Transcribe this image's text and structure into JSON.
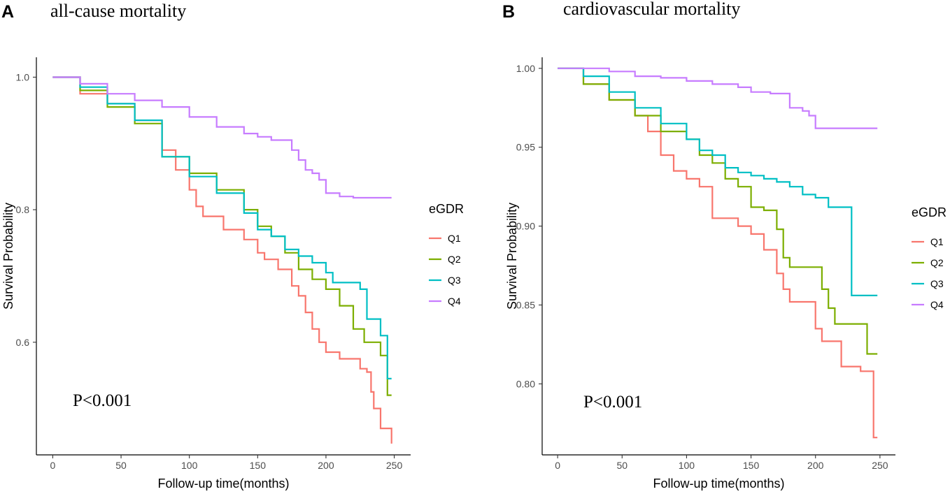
{
  "chart_data": [
    {
      "panel": "A",
      "type": "line",
      "title": "all-cause mortality",
      "xlabel": "Follow-up time(months)",
      "ylabel": "Survival Probability",
      "xlim": [
        -12,
        262
      ],
      "ylim": [
        0.43,
        1.03
      ],
      "xticks": [
        0,
        50,
        100,
        150,
        200,
        250
      ],
      "xtick_labels": [
        "0",
        "50",
        "100",
        "150",
        "200",
        "250"
      ],
      "yticks": [
        0.6,
        0.8,
        1.0
      ],
      "ytick_labels": [
        "0.6",
        "0.8",
        "1.0"
      ],
      "annotation": "P<0.001",
      "legend_title": "eGDR",
      "series": [
        {
          "name": "Q1",
          "color": "#F8766D",
          "x": [
            0,
            20,
            40,
            60,
            80,
            90,
            100,
            105,
            110,
            125,
            140,
            150,
            155,
            165,
            175,
            180,
            185,
            190,
            195,
            200,
            210,
            220,
            225,
            230,
            233,
            235,
            240,
            244,
            248
          ],
          "y": [
            1.0,
            0.975,
            0.96,
            0.935,
            0.89,
            0.86,
            0.83,
            0.805,
            0.79,
            0.77,
            0.755,
            0.735,
            0.725,
            0.71,
            0.685,
            0.67,
            0.645,
            0.62,
            0.6,
            0.585,
            0.575,
            0.575,
            0.56,
            0.555,
            0.525,
            0.5,
            0.47,
            0.47,
            0.447
          ]
        },
        {
          "name": "Q2",
          "color": "#7CAE00",
          "x": [
            0,
            20,
            40,
            60,
            80,
            100,
            120,
            140,
            150,
            160,
            170,
            180,
            190,
            200,
            210,
            220,
            228,
            240,
            245,
            248
          ],
          "y": [
            1.0,
            0.98,
            0.955,
            0.93,
            0.88,
            0.855,
            0.83,
            0.8,
            0.775,
            0.76,
            0.735,
            0.71,
            0.695,
            0.68,
            0.655,
            0.62,
            0.6,
            0.58,
            0.52,
            0.52
          ]
        },
        {
          "name": "Q3",
          "color": "#00BFC4",
          "x": [
            0,
            20,
            40,
            60,
            80,
            100,
            120,
            140,
            150,
            160,
            170,
            180,
            190,
            200,
            205,
            215,
            225,
            230,
            235,
            240,
            245,
            248
          ],
          "y": [
            1.0,
            0.985,
            0.96,
            0.935,
            0.88,
            0.85,
            0.825,
            0.795,
            0.77,
            0.76,
            0.74,
            0.73,
            0.72,
            0.705,
            0.69,
            0.69,
            0.68,
            0.635,
            0.635,
            0.61,
            0.545,
            0.545
          ]
        },
        {
          "name": "Q4",
          "color": "#C77CFF",
          "x": [
            0,
            20,
            40,
            60,
            80,
            100,
            120,
            140,
            150,
            160,
            170,
            175,
            180,
            185,
            190,
            195,
            200,
            210,
            220,
            230,
            248
          ],
          "y": [
            1.0,
            0.99,
            0.975,
            0.965,
            0.955,
            0.94,
            0.925,
            0.915,
            0.91,
            0.905,
            0.905,
            0.89,
            0.875,
            0.86,
            0.855,
            0.845,
            0.825,
            0.82,
            0.818,
            0.818,
            0.818
          ]
        }
      ]
    },
    {
      "panel": "B",
      "type": "line",
      "title": "cardiovascular mortality",
      "xlabel": "Follow-up time(months)",
      "ylabel": "Survival Probability",
      "xlim": [
        -12,
        262
      ],
      "ylim": [
        0.755,
        1.007
      ],
      "xticks": [
        0,
        50,
        100,
        150,
        200,
        250
      ],
      "xtick_labels": [
        "0",
        "50",
        "100",
        "150",
        "200",
        "250"
      ],
      "yticks": [
        0.8,
        0.85,
        0.9,
        0.95,
        1.0
      ],
      "ytick_labels": [
        "0.80",
        "0.85",
        "0.90",
        "0.95",
        "1.00"
      ],
      "annotation": "P<0.001",
      "legend_title": "eGDR",
      "series": [
        {
          "name": "Q1",
          "color": "#F8766D",
          "x": [
            0,
            20,
            40,
            60,
            70,
            80,
            90,
            100,
            110,
            120,
            130,
            140,
            150,
            160,
            170,
            175,
            180,
            185,
            195,
            200,
            205,
            215,
            220,
            225,
            235,
            240,
            245,
            248
          ],
          "y": [
            1.0,
            0.99,
            0.98,
            0.97,
            0.96,
            0.945,
            0.935,
            0.93,
            0.925,
            0.905,
            0.905,
            0.9,
            0.895,
            0.885,
            0.87,
            0.86,
            0.852,
            0.852,
            0.852,
            0.835,
            0.827,
            0.827,
            0.811,
            0.811,
            0.808,
            0.808,
            0.766,
            0.766
          ]
        },
        {
          "name": "Q2",
          "color": "#7CAE00",
          "x": [
            0,
            20,
            40,
            60,
            80,
            100,
            110,
            120,
            130,
            140,
            150,
            160,
            170,
            175,
            180,
            200,
            205,
            210,
            215,
            235,
            240,
            248
          ],
          "y": [
            1.0,
            0.99,
            0.98,
            0.97,
            0.96,
            0.955,
            0.945,
            0.94,
            0.93,
            0.925,
            0.912,
            0.91,
            0.898,
            0.88,
            0.874,
            0.874,
            0.86,
            0.848,
            0.838,
            0.838,
            0.819,
            0.819
          ]
        },
        {
          "name": "Q3",
          "color": "#00BFC4",
          "x": [
            0,
            20,
            40,
            60,
            80,
            100,
            110,
            120,
            130,
            140,
            150,
            160,
            170,
            180,
            190,
            200,
            205,
            210,
            220,
            225,
            228,
            235,
            248
          ],
          "y": [
            1.0,
            0.995,
            0.985,
            0.975,
            0.965,
            0.955,
            0.948,
            0.945,
            0.937,
            0.934,
            0.932,
            0.93,
            0.928,
            0.925,
            0.92,
            0.918,
            0.918,
            0.912,
            0.912,
            0.912,
            0.856,
            0.856,
            0.856
          ]
        },
        {
          "name": "Q4",
          "color": "#C77CFF",
          "x": [
            0,
            20,
            40,
            60,
            80,
            100,
            120,
            140,
            150,
            165,
            175,
            180,
            190,
            195,
            200,
            248
          ],
          "y": [
            1.0,
            1.0,
            0.998,
            0.995,
            0.994,
            0.992,
            0.99,
            0.988,
            0.985,
            0.984,
            0.984,
            0.975,
            0.973,
            0.97,
            0.962,
            0.962
          ]
        }
      ]
    }
  ],
  "panels": [
    {
      "letter": "A",
      "title": "all-cause mortality"
    },
    {
      "letter": "B",
      "title": "cardiovascular mortality"
    }
  ]
}
